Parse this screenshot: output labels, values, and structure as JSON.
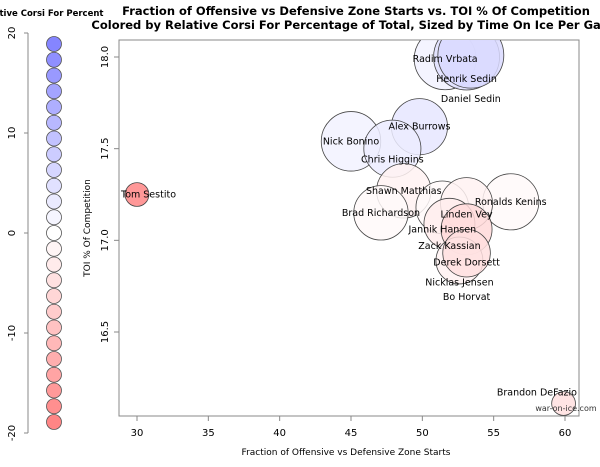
{
  "chart_data": {
    "type": "scatter",
    "title_line1": "Fraction of Offensive vs Defensive Zone Starts vs. TOI % Of Competition",
    "title_line2": "Colored by Relative Corsi For Percentage of Total, Sized by Time On Ice Per Game",
    "xlabel": "Fraction of Offensive vs Defensive Zone Starts",
    "ylabel": "TOI % Of Competition",
    "xlim": [
      28.5,
      61.0
    ],
    "ylim": [
      16.08,
      18.1
    ],
    "xticks": [
      "30",
      "35",
      "40",
      "45",
      "50",
      "55",
      "60"
    ],
    "yticks": [
      "16.5",
      "17.0",
      "17.5",
      "18.0"
    ],
    "watermark": "war-on-ice.com",
    "color_positive": "#8080ff",
    "color_negative": "#ff8080",
    "legend": {
      "title": "Relative Corsi For Percent",
      "range": [
        -20,
        20
      ],
      "ticks": [
        "20",
        "10",
        "0",
        "-10",
        "-20"
      ],
      "placement": "left"
    },
    "points": [
      {
        "name": "Radim Vrbata",
        "x": 51.6,
        "y": 17.99,
        "rel_corsi": 2,
        "toi": 18.2
      },
      {
        "name": "Henrik Sedin",
        "x": 53.1,
        "y": 18.0,
        "rel_corsi": 5,
        "toi": 19.4
      },
      {
        "name": "Daniel Sedin",
        "x": 53.4,
        "y": 18.01,
        "rel_corsi": 6,
        "toi": 19.4
      },
      {
        "name": "Alex Burrows",
        "x": 49.8,
        "y": 17.62,
        "rel_corsi": 4,
        "toi": 16.5
      },
      {
        "name": "Nick Bonino",
        "x": 45.0,
        "y": 17.54,
        "rel_corsi": 2,
        "toi": 17.5
      },
      {
        "name": "Chris Higgins",
        "x": 47.9,
        "y": 17.5,
        "rel_corsi": 3,
        "toi": 16.8
      },
      {
        "name": "Shawn Matthias",
        "x": 48.7,
        "y": 17.27,
        "rel_corsi": -2,
        "toi": 16.0
      },
      {
        "name": "Brad Richardson",
        "x": 47.1,
        "y": 17.15,
        "rel_corsi": -1,
        "toi": 16.0
      },
      {
        "name": "Ronalds Kenins",
        "x": 56.2,
        "y": 17.21,
        "rel_corsi": -1,
        "toi": 16.5
      },
      {
        "name": "Jannik Hansen",
        "x": 51.4,
        "y": 17.18,
        "rel_corsi": -1,
        "toi": 15.5
      },
      {
        "name": "Linden Vey",
        "x": 53.1,
        "y": 17.2,
        "rel_corsi": -2,
        "toi": 15.3
      },
      {
        "name": "Zack Kassian",
        "x": 51.9,
        "y": 17.09,
        "rel_corsi": -3,
        "toi": 15.0
      },
      {
        "name": "Derek Dorsett",
        "x": 53.1,
        "y": 17.06,
        "rel_corsi": -6,
        "toi": 15.0
      },
      {
        "name": "Nicklas Jensen",
        "x": 52.6,
        "y": 16.89,
        "rel_corsi": -2,
        "toi": 13.8
      },
      {
        "name": "Bo Horvat",
        "x": 53.1,
        "y": 16.93,
        "rel_corsi": -5,
        "toi": 14.0
      },
      {
        "name": "Tom Sestito",
        "x": 30.0,
        "y": 17.25,
        "rel_corsi": -19,
        "toi": 7.0
      },
      {
        "name": "Brandon DeFazio",
        "x": 59.9,
        "y": 16.11,
        "rel_corsi": -5,
        "toi": 7.0
      }
    ]
  }
}
